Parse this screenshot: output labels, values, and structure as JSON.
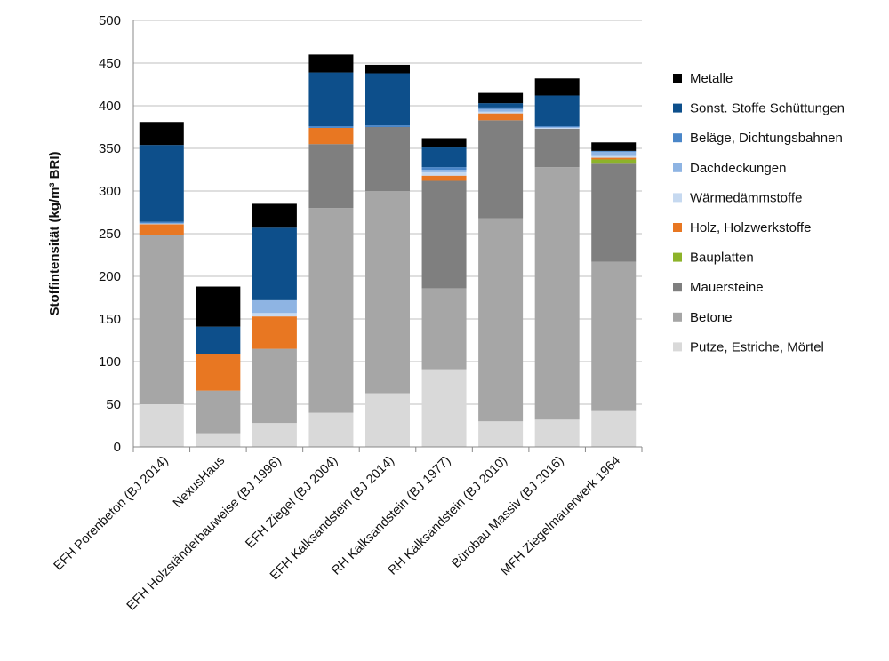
{
  "chart_data": {
    "type": "bar",
    "stacked": true,
    "title": "",
    "xlabel": "",
    "ylabel": "Stoffintensität (kg/m³ BRI)",
    "ylim": [
      0,
      500
    ],
    "yticks": [
      0,
      50,
      100,
      150,
      200,
      250,
      300,
      350,
      400,
      450,
      500
    ],
    "grid": true,
    "legend_position": "right",
    "categories": [
      "EFH Porenbeton (BJ 2014)",
      "NexusHaus",
      "EFH Holzständerbauweise (BJ 1996)",
      "EFH Ziegel (BJ 2004)",
      "EFH Kalksandstein (BJ 2014)",
      "RH Kalksandstein (BJ 1977)",
      "RH Kalksandstein (BJ 2010)",
      "Bürobau Massiv (BJ 2016)",
      "MFH Ziegelmauerwerk 1964"
    ],
    "series": [
      {
        "name": "Putze, Estriche, Mörtel",
        "color": "#d9d9d9",
        "values": [
          50,
          16,
          28,
          40,
          63,
          91,
          30,
          32,
          42
        ]
      },
      {
        "name": "Betone",
        "color": "#a6a6a6",
        "values": [
          198,
          50,
          87,
          240,
          237,
          95,
          238,
          296,
          175
        ]
      },
      {
        "name": "Mauersteine",
        "color": "#7f7f7f",
        "values": [
          0,
          0,
          0,
          75,
          75,
          126,
          115,
          45,
          115
        ]
      },
      {
        "name": "Bauplatten",
        "color": "#8db32a",
        "values": [
          0,
          0,
          0,
          0,
          0,
          0,
          0,
          0,
          5
        ]
      },
      {
        "name": "Holz, Holzwerkstoffe",
        "color": "#e87722",
        "values": [
          13,
          43,
          38,
          19,
          0,
          6,
          8,
          0,
          2
        ]
      },
      {
        "name": "Wärmedämmstoffe",
        "color": "#c6d9f0",
        "values": [
          1,
          0,
          4,
          0,
          0,
          4,
          2,
          1,
          2
        ]
      },
      {
        "name": "Dachdeckungen",
        "color": "#8eb4e3",
        "values": [
          0,
          0,
          15,
          0,
          0,
          3,
          3,
          1,
          5
        ]
      },
      {
        "name": "Beläge, Dichtungsbahnen",
        "color": "#4a86c8",
        "values": [
          2,
          0,
          0,
          2,
          2,
          3,
          2,
          1,
          1
        ]
      },
      {
        "name": "Sonst. Stoffe Schüttungen",
        "color": "#0d4f8b",
        "values": [
          90,
          32,
          85,
          63,
          61,
          23,
          5,
          36,
          0
        ]
      },
      {
        "name": "Metalle",
        "color": "#000000",
        "values": [
          27,
          47,
          28,
          21,
          10,
          11,
          12,
          20,
          10
        ]
      }
    ]
  }
}
